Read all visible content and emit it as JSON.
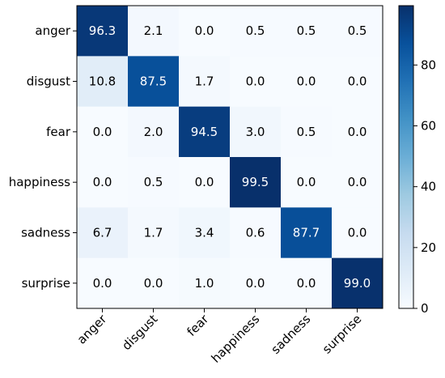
{
  "chart_data": {
    "type": "heatmap",
    "title": "",
    "xlabel": "",
    "ylabel": "",
    "x_categories": [
      "anger",
      "disgust",
      "fear",
      "happiness",
      "sadness",
      "surprise"
    ],
    "y_categories": [
      "anger",
      "disgust",
      "fear",
      "happiness",
      "sadness",
      "surprise"
    ],
    "values": [
      [
        96.3,
        2.1,
        0.0,
        0.5,
        0.5,
        0.5
      ],
      [
        10.8,
        87.5,
        1.7,
        0.0,
        0.0,
        0.0
      ],
      [
        0.0,
        2.0,
        94.5,
        3.0,
        0.5,
        0.0
      ],
      [
        0.0,
        0.5,
        0.0,
        99.5,
        0.0,
        0.0
      ],
      [
        6.7,
        1.7,
        3.4,
        0.6,
        87.7,
        0.0
      ],
      [
        0.0,
        0.0,
        1.0,
        0.0,
        0.0,
        99.0
      ]
    ],
    "value_format": "0.0",
    "colormap": "Blues",
    "colorbar": {
      "range": [
        0,
        99.5
      ],
      "ticks": [
        0,
        20,
        40,
        60,
        80
      ],
      "tick_labels": [
        "0",
        "20",
        "40",
        "60",
        "80"
      ]
    },
    "grid": false,
    "legend": "colorbar-right"
  }
}
